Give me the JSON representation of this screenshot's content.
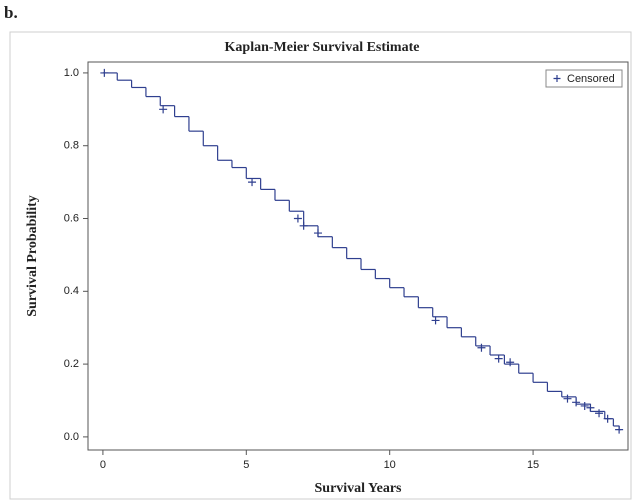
{
  "panel_label": "b.",
  "chart_data": {
    "type": "line",
    "step": "post",
    "title": "Kaplan-Meier Survival Estimate",
    "xlabel": "Survival Years",
    "ylabel": "Survival Probability",
    "color": "#2f3f8f",
    "x": [
      0,
      0.5,
      1,
      1.5,
      2,
      2.5,
      3,
      3.5,
      4,
      4.5,
      5,
      5.5,
      6,
      6.5,
      7,
      7.5,
      8,
      8.5,
      9,
      9.5,
      10,
      10.5,
      11,
      11.5,
      12,
      12.5,
      13,
      13.5,
      14,
      14.5,
      15,
      15.5,
      16,
      16.5,
      17,
      17.5,
      17.8,
      18
    ],
    "values": [
      1.0,
      0.98,
      0.96,
      0.935,
      0.91,
      0.88,
      0.84,
      0.8,
      0.76,
      0.74,
      0.71,
      0.68,
      0.65,
      0.62,
      0.58,
      0.55,
      0.52,
      0.49,
      0.46,
      0.435,
      0.41,
      0.385,
      0.355,
      0.33,
      0.3,
      0.275,
      0.25,
      0.225,
      0.2,
      0.175,
      0.15,
      0.125,
      0.11,
      0.09,
      0.07,
      0.05,
      0.03,
      0.02
    ],
    "censored": {
      "name": "Censored",
      "x": [
        0.05,
        2.1,
        5.2,
        6.8,
        7.0,
        7.5,
        11.6,
        13.2,
        13.8,
        14.2,
        16.2,
        16.5,
        16.8,
        17.0,
        17.3,
        17.6,
        18.0
      ],
      "values": [
        1.0,
        0.9,
        0.7,
        0.6,
        0.58,
        0.56,
        0.32,
        0.245,
        0.215,
        0.205,
        0.105,
        0.095,
        0.085,
        0.08,
        0.065,
        0.05,
        0.02
      ]
    },
    "legend": "top-right",
    "xlim": [
      -0.52,
      18.31
    ],
    "ylim": [
      -0.036,
      1.03
    ],
    "xticks": [
      0,
      5,
      10,
      15
    ],
    "yticks": [
      {
        "value": 0,
        "label": "0.0"
      },
      {
        "value": 0.2,
        "label": "0.2"
      },
      {
        "value": 0.4,
        "label": "0.4"
      },
      {
        "value": 0.6,
        "label": "0.6"
      },
      {
        "value": 0.8,
        "label": "0.8"
      },
      {
        "value": 1,
        "label": "1.0"
      }
    ]
  }
}
